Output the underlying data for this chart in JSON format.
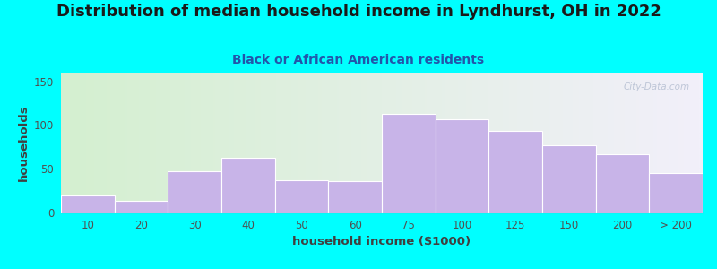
{
  "title": "Distribution of median household income in Lyndhurst, OH in 2022",
  "subtitle": "Black or African American residents",
  "xlabel": "household income ($1000)",
  "ylabel": "households",
  "background_color": "#00FFFF",
  "bar_color": "#c8b4e8",
  "bar_edge_color": "#ffffff",
  "categories": [
    "10",
    "20",
    "30",
    "40",
    "50",
    "60",
    "75",
    "100",
    "125",
    "150",
    "200",
    "> 200"
  ],
  "values": [
    20,
    13,
    47,
    63,
    37,
    36,
    113,
    107,
    93,
    77,
    67,
    45
  ],
  "ylim": [
    0,
    160
  ],
  "yticks": [
    0,
    50,
    100,
    150
  ],
  "title_fontsize": 13,
  "subtitle_fontsize": 10,
  "axis_label_fontsize": 9.5,
  "tick_fontsize": 8.5,
  "watermark_text": "City-Data.com"
}
